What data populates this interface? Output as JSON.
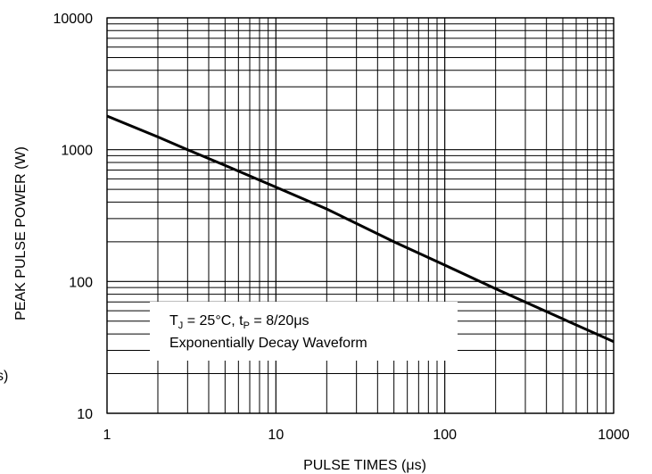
{
  "chart_data": {
    "type": "line",
    "xlabel": "PULSE TIMES (μs)",
    "ylabel": "PEAK PULSE POWER (W)",
    "x_scale": "log",
    "y_scale": "log",
    "xlim": [
      1,
      1000
    ],
    "ylim": [
      10,
      10000
    ],
    "grid": true,
    "x_ticks": [
      "1",
      "10",
      "100",
      "1000"
    ],
    "y_ticks": [
      "10",
      "100",
      "1000",
      "10000"
    ],
    "series": [
      {
        "color": "#000000",
        "x": [
          1,
          2,
          3,
          5,
          10,
          20,
          50,
          100,
          200,
          500,
          1000
        ],
        "y": [
          1800,
          1250,
          1000,
          760,
          520,
          355,
          200,
          133,
          88,
          52,
          35
        ]
      }
    ],
    "annotation": {
      "line1": {
        "t": "T",
        "t_sub": "J",
        "mid": " = 25°C, t",
        "mid_sub": "P",
        "end": " = 8/20μs"
      },
      "line2": "Exponentially Decay Waveform"
    },
    "edge_text": "s)"
  }
}
